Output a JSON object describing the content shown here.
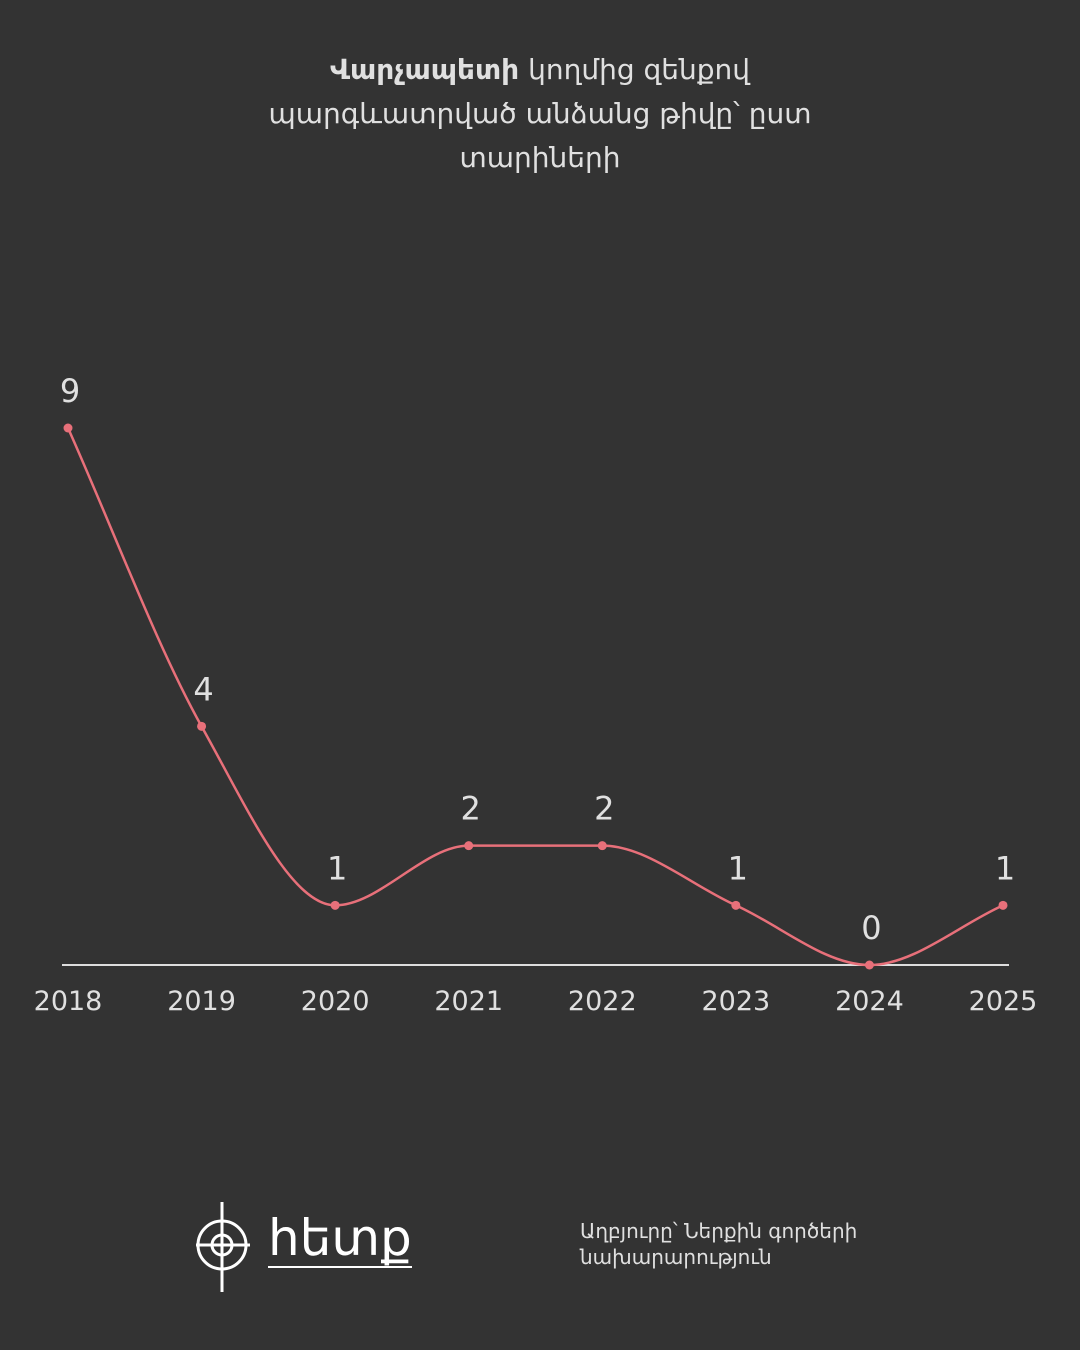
{
  "chart_data": {
    "type": "line",
    "title_emphasis": "Վարչապետի",
    "title": "կողմից զենքով պարգևատրված անձանց թիվը՝ ըստ տարիների",
    "categories": [
      "2018",
      "2019",
      "2020",
      "2021",
      "2022",
      "2023",
      "2024",
      "2025"
    ],
    "values": [
      9,
      4,
      1,
      2,
      2,
      1,
      0,
      1
    ],
    "color": "#e8707a",
    "ylim": [
      0,
      9
    ]
  },
  "footer": {
    "logo": "հետք",
    "source": "Աղբյուրը՝ Ներքին գործերի նախարարություն"
  }
}
